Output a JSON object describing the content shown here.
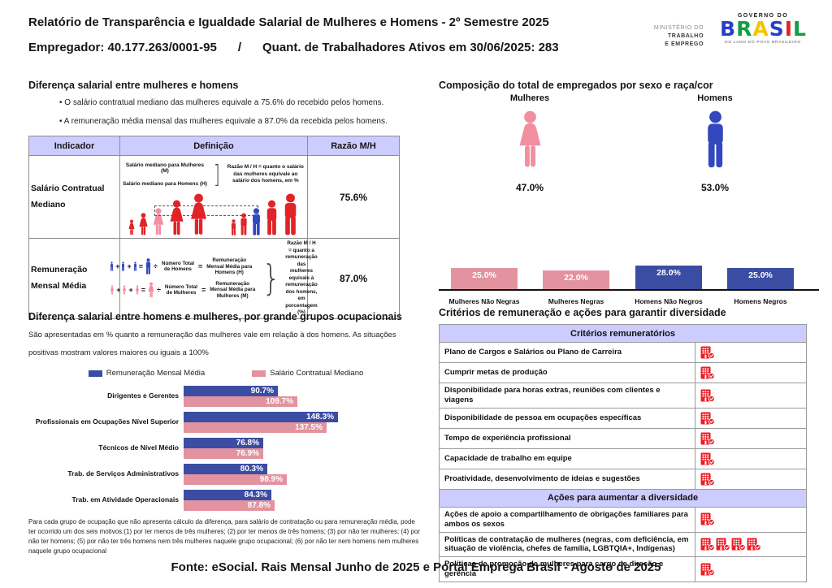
{
  "colors": {
    "accent_blue": "#3b4da2",
    "accent_pink": "#e2939f",
    "icon_blue": "#3347bf",
    "icon_pink": "#f18fa1",
    "figure_red": "#e02427",
    "table_header_bg": "#ccccff",
    "criteria_icon_red": "#ee1c25"
  },
  "header": {
    "title": "Relatório de Transparência e Igualdade Salarial de Mulheres e Homens - 2º Semestre 2025",
    "employer": "Empregador: 40.177.263/0001-95",
    "separator": "/",
    "workers": "Quant. de Trabalhadores Ativos em 30/06/2025: 283",
    "ministry_line1": "MINISTÉRIO DO",
    "ministry_line2": "TRABALHO",
    "ministry_line3": "E EMPREGO",
    "gov_top": "GOVERNO DO",
    "gov_name_letters": [
      {
        "char": "B",
        "color": "#2840c8"
      },
      {
        "char": "R",
        "color": "#119e41"
      },
      {
        "char": "A",
        "color": "#f5c400"
      },
      {
        "char": "S",
        "color": "#2840c8"
      },
      {
        "char": "I",
        "color": "#e52320"
      },
      {
        "char": "L",
        "color": "#119e41"
      }
    ],
    "gov_bottom": "DO LADO DO POVO BRASILEIRO"
  },
  "salary_gap": {
    "title": "Diferença salarial entre mulheres e homens",
    "bullets": [
      "O salário contratual mediano das mulheres equivale a 75.6% do recebido pelos homens.",
      "A remuneração média mensal das mulheres equivale a 87.0% da recebida pelos homens."
    ],
    "table": {
      "headers": [
        "Indicador",
        "Definição",
        "Razão M/H"
      ],
      "row1": {
        "indicator": "Salário Contratual Mediano",
        "ratio": "75.6%",
        "def_label_f": "Salário mediano para Mulheres (M)",
        "def_label_m": "Salário mediano para Homens (H)",
        "bracket": "]",
        "def_note": "Razão M / H = quanto o salário das mulheres equivale ao salário dos homens, em %"
      },
      "row2": {
        "indicator": "Remuneração Mensal Média",
        "ratio": "87.0%",
        "plus": "+",
        "equals": "=",
        "divide": "÷",
        "bracket": "}",
        "num_total_m": "Número Total de Homens",
        "num_total_f": "Número Total de Mulheres",
        "avg_m": "Remuneração Mensal Média para Homens (H)",
        "avg_f": "Remuneração Mensal Média para Mulheres (M)",
        "def_note": "Razão M / H = quanto a remuneração das mulheres equivale à remuneração dos homens, em porcentagem (%)"
      }
    }
  },
  "composition": {
    "title": "Composição do total de empregados por sexo e raça/cor",
    "female_label": "Mulheres",
    "female_value": "47.0%",
    "male_label": "Homens",
    "male_value": "53.0%"
  },
  "occupation": {
    "title": "Diferença salarial entre homens e mulheres, por grande grupos ocupacionais",
    "subtitle": "São apresentadas em % quanto a remuneração das mulheres vale em relação à dos homens. As situações positivas mostram valores maiores ou iguais a 100%",
    "footnote": "Para cada grupo de ocupação que não apresenta cálculo da diferença, para salário de contratação ou para remuneração média, pode ter ocorrido um dos seis motivos:(1) por ter menos de três mulheres; (2) por ter menos de três homens; (3) por não ter mulheres; (4) por não ter homens; (5) por não ter três homens nem três mulheres naquele grupo ocupacional; (6) por não ter nem homens nem mulheres naquele grupo ocupacional"
  },
  "criteria": {
    "title": "Critérios de remuneração e ações para garantir diversidade",
    "sections": [
      {
        "header": "Critérios remuneratórios",
        "rows": [
          {
            "label": "Plano de Cargos e Salários ou Plano de Carreira",
            "icons": 1
          },
          {
            "label": "Cumprir metas de produção",
            "icons": 1
          },
          {
            "label": "Disponibilidade para horas extras, reuniões com clientes e viagens",
            "icons": 1
          },
          {
            "label": "Disponibilidade de pessoa em ocupações específicas",
            "icons": 1
          },
          {
            "label": "Tempo de experiência profissional",
            "icons": 1
          },
          {
            "label": "Capacidade de trabalho em equipe",
            "icons": 1
          },
          {
            "label": "Proatividade, desenvolvimento de ideias e sugestões",
            "icons": 1
          }
        ]
      },
      {
        "header": "Ações para aumentar a diversidade",
        "rows": [
          {
            "label": "Ações de apoio a compartilhamento de obrigações familiares para ambos os sexos",
            "icons": 1
          },
          {
            "label": "Políticas de contratação de mulheres (negras, com deficiência, em situação de violência, chefes de família, LGBTQIA+, Indígenas)",
            "icons": 4
          },
          {
            "label": "Políticas de promoção de mulheres para cargo de direção e gerência",
            "icons": 1
          }
        ]
      }
    ]
  },
  "footer": "Fonte: eSocial. Rais Mensal Junho de 2025 e Portal Emprega Brasil - Agosto de 2025",
  "chart_data": [
    {
      "type": "bar",
      "title": "Composição do total de empregados por sexo e raça/cor",
      "categories": [
        "Mulheres Não Negras",
        "Mulheres Negras",
        "Homens Não Negros",
        "Homens Negros"
      ],
      "values": [
        25.0,
        22.0,
        28.0,
        25.0
      ],
      "value_labels": [
        "25.0%",
        "22.0%",
        "28.0%",
        "25.0%"
      ],
      "bar_colors": [
        "#e2939f",
        "#e2939f",
        "#3b4da2",
        "#3b4da2"
      ],
      "totals": {
        "Mulheres": 47.0,
        "Homens": 53.0
      },
      "xlabel": "",
      "ylabel": "",
      "ylim": [
        0,
        30
      ],
      "grid": false
    },
    {
      "type": "bar",
      "orientation": "horizontal",
      "title": "Diferença salarial entre homens e mulheres, por grande grupos ocupacionais",
      "categories": [
        "Dirigentes e Gerentes",
        "Profissionais em Ocupações Nível Superior",
        "Técnicos de Nível Médio",
        "Trab. de Serviços Administrativos",
        "Trab. em Atividade Operacionais"
      ],
      "series": [
        {
          "name": "Remuneração Mensal Média",
          "color": "#3b4da2",
          "values": [
            90.7,
            148.3,
            76.8,
            80.3,
            84.3
          ],
          "labels": [
            "90.7%",
            "148.3%",
            "76.8%",
            "80.3%",
            "84.3%"
          ]
        },
        {
          "name": "Salário Contratual Mediano",
          "color": "#e2939f",
          "values": [
            109.7,
            137.5,
            76.9,
            98.9,
            87.8
          ],
          "labels": [
            "109.7%",
            "137.5%",
            "76.9%",
            "98.9%",
            "87.8%"
          ]
        }
      ],
      "xlim": [
        0,
        160
      ],
      "legend_position": "top",
      "grid": false
    }
  ]
}
